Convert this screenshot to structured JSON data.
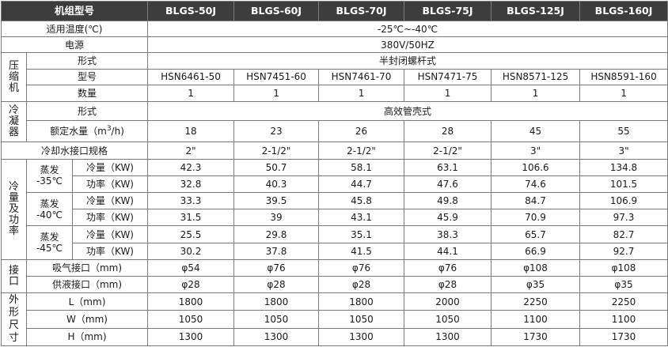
{
  "header": {
    "title": "机组型号",
    "models": [
      "BLGS-50J",
      "BLGS-60J",
      "BLGS-70J",
      "BLGS-75J",
      "BLGS-125J",
      "BLGS-160J"
    ]
  },
  "temp_row": {
    "label": "适用温度(℃)",
    "value": "-25℃~-40℃"
  },
  "power_row": {
    "label": "电源",
    "value": "380V/50HZ"
  },
  "compressor": {
    "group_chars": [
      "压",
      "缩",
      "机"
    ],
    "form_label": "形式",
    "form_value": "半封闭螺杆式",
    "model_label": "型号",
    "model_values": [
      "HSN6461-50",
      "HSN7451-60",
      "HSN7461-70",
      "HSN7471-75",
      "HSN8571-125",
      "HSN8591-160"
    ],
    "qty_label": "数量",
    "qty_values": [
      "1",
      "1",
      "1",
      "1",
      "1",
      "1"
    ]
  },
  "condenser": {
    "group_chars": [
      "冷",
      "凝",
      "器"
    ],
    "form_label": "形式",
    "form_value": "高效管壳式",
    "water_label": "额定水量（m",
    "water_label_sup": "3",
    "water_label_tail": "/h)",
    "water_values": [
      "18",
      "23",
      "26",
      "28",
      "45",
      "55"
    ],
    "pipe_label": "冷却水接口规格",
    "pipe_values": [
      "2\"",
      "2-1/2\"",
      "2-1/2\"",
      "2-1/2\"",
      "3\"",
      "3\""
    ]
  },
  "capacity": {
    "group_chars": [
      "冷",
      "量",
      "及",
      "功",
      "率"
    ],
    "groups": [
      {
        "evap_label": "蒸发",
        "evap_temp": "-35℃",
        "cap_label": "冷量（KW)",
        "cap_values": [
          "42.3",
          "50.7",
          "58.1",
          "63.1",
          "106.6",
          "134.8"
        ],
        "pow_label": "功率（KW)",
        "pow_values": [
          "32.8",
          "40.3",
          "44.7",
          "47.6",
          "74.6",
          "101.5"
        ]
      },
      {
        "evap_label": "蒸发",
        "evap_temp": "-40℃",
        "cap_label": "冷量（KW)",
        "cap_values": [
          "33.3",
          "39.5",
          "45.8",
          "49.8",
          "84.7",
          "106.9"
        ],
        "pow_label": "功率（KW)",
        "pow_values": [
          "31.5",
          "39",
          "43.1",
          "45.9",
          "70.9",
          "97.3"
        ]
      },
      {
        "evap_label": "蒸发",
        "evap_temp": "-45℃",
        "cap_label": "冷量（KW)",
        "cap_values": [
          "25.5",
          "29.8",
          "35.1",
          "38.3",
          "65.7",
          "82.7"
        ],
        "pow_label": "功率（KW)",
        "pow_values": [
          "30.2",
          "37.8",
          "41.5",
          "44.1",
          "66.9",
          "92.7"
        ]
      }
    ]
  },
  "ports": {
    "group_chars": [
      "接",
      "口"
    ],
    "suction_label": "吸气接口（mm)",
    "suction_values": [
      "φ54",
      "φ76",
      "φ76",
      "φ76",
      "φ108",
      "φ108"
    ],
    "liquid_label": "供液接口（mm)",
    "liquid_values": [
      "φ28",
      "φ28",
      "φ28",
      "φ28",
      "φ35",
      "φ35"
    ]
  },
  "dimensions": {
    "group_chars": [
      "外",
      "形",
      "尺",
      "寸"
    ],
    "l_label": "L（mm)",
    "l_values": [
      "1800",
      "1800",
      "1800",
      "2000",
      "2250",
      "2250"
    ],
    "w_label": "W（mm)",
    "w_values": [
      "1050",
      "1050",
      "1050",
      "1050",
      "1100",
      "1100"
    ],
    "h_label": "H（mm)",
    "h_values": [
      "1300",
      "1300",
      "1300",
      "1300",
      "1730",
      "1730"
    ]
  }
}
